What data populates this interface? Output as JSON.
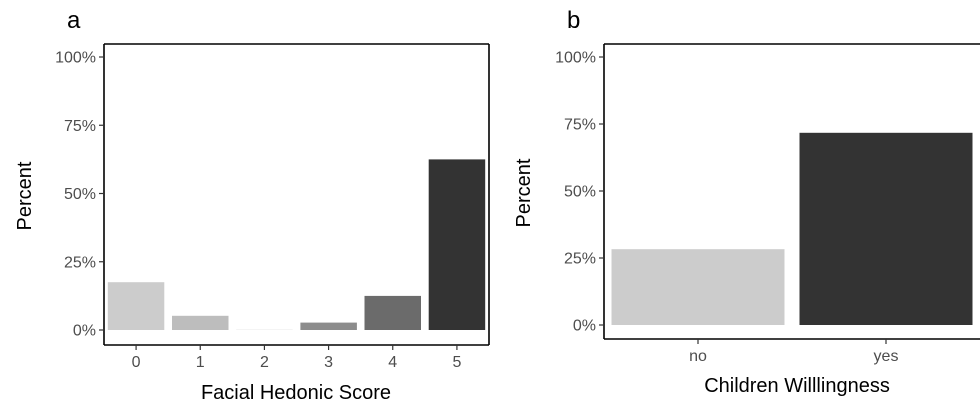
{
  "chart_data": [
    {
      "type": "bar",
      "panel_label": "a",
      "categories": [
        "0",
        "1",
        "2",
        "3",
        "4",
        "5"
      ],
      "values": [
        17.5,
        5.2,
        0.3,
        2.7,
        12.5,
        62.5
      ],
      "bar_colors": [
        "#cccccc",
        "#bdbdbd",
        "#f2f2f2",
        "#8c8c8c",
        "#6b6b6b",
        "#333333"
      ],
      "xlabel": "Facial Hedonic Score",
      "ylabel": "Percent",
      "ylim": [
        0,
        100
      ],
      "yticks": [
        0,
        25,
        50,
        75,
        100
      ],
      "ytick_labels": [
        "0%",
        "25%",
        "50%",
        "75%",
        "100%"
      ],
      "grid": false
    },
    {
      "type": "bar",
      "panel_label": "b",
      "categories": [
        "no",
        "yes"
      ],
      "values": [
        28.3,
        71.7
      ],
      "bar_colors": [
        "#cccccc",
        "#333333"
      ],
      "xlabel": "Children Willlingness",
      "ylabel": "Percent",
      "ylim": [
        0,
        100
      ],
      "yticks": [
        0,
        25,
        50,
        75,
        100
      ],
      "ytick_labels": [
        "0%",
        "25%",
        "50%",
        "75%",
        "100%"
      ],
      "grid": false
    }
  ]
}
